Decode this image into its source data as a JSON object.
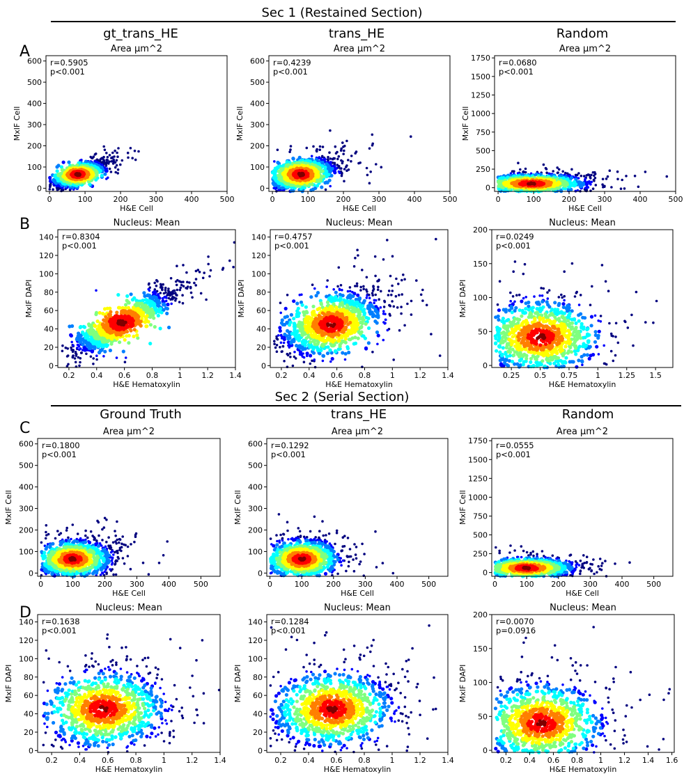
{
  "figure": {
    "section1": {
      "title": "Sec 1 (Restained Section)",
      "columns": [
        "gt_trans_HE",
        "trans_HE",
        "Random"
      ]
    },
    "section2": {
      "title": "Sec 2 (Serial Section)",
      "columns": [
        "Ground Truth",
        "trans_HE",
        "Random"
      ]
    },
    "row_labels": [
      "A",
      "B",
      "C",
      "D"
    ]
  },
  "chart_data": [
    {
      "id": "A1",
      "type": "scatter",
      "title": "Area µm^2",
      "xlabel": "H&E Cell",
      "ylabel": "MxIF Cell",
      "xlim": [
        -10,
        500
      ],
      "ylim": [
        -15,
        625
      ],
      "xticks": [
        0,
        100,
        200,
        300,
        400,
        500
      ],
      "yticks": [
        0,
        100,
        200,
        300,
        400,
        500,
        600
      ],
      "r": "r=0.5905",
      "p": "p<0.001",
      "density_center": [
        80,
        65
      ],
      "density_spread": [
        38,
        30
      ],
      "corr": 0.75
    },
    {
      "id": "A2",
      "type": "scatter",
      "title": "Area µm^2",
      "xlabel": "H&E Cell",
      "ylabel": "MxIF Cell",
      "xlim": [
        -10,
        500
      ],
      "ylim": [
        -15,
        625
      ],
      "xticks": [
        0,
        100,
        200,
        300,
        400,
        500
      ],
      "yticks": [
        0,
        100,
        200,
        300,
        400,
        500,
        600
      ],
      "r": "r=0.4239",
      "p": "p<0.001",
      "density_center": [
        80,
        65
      ],
      "density_spread": [
        45,
        38
      ],
      "corr": 0.5
    },
    {
      "id": "A3",
      "type": "scatter",
      "title": "Area µm^2",
      "xlabel": "H&E Cell",
      "ylabel": "MxIF Cell",
      "xlim": [
        -10,
        500
      ],
      "ylim": [
        -50,
        1780
      ],
      "xticks": [
        0,
        100,
        200,
        300,
        400,
        500
      ],
      "yticks": [
        0,
        250,
        500,
        750,
        1000,
        1250,
        1500,
        1750
      ],
      "r": "r=0.0680",
      "p": "p<0.001",
      "density_center": [
        95,
        55
      ],
      "density_spread": [
        70,
        60
      ],
      "corr": 0.05
    },
    {
      "id": "B1",
      "type": "scatter",
      "title": "Nucleus: Mean",
      "xlabel": "H&E Hematoxylin",
      "ylabel": "MxIF DAPI",
      "xlim": [
        0.12,
        1.4
      ],
      "ylim": [
        -2,
        148
      ],
      "xticks": [
        0.2,
        0.4,
        0.6,
        0.8,
        1.0,
        1.2,
        1.4
      ],
      "yticks": [
        0,
        20,
        40,
        60,
        80,
        100,
        120,
        140
      ],
      "r": "r=0.8304",
      "p": "p<0.001",
      "density_center": [
        0.58,
        47
      ],
      "density_spread": [
        0.18,
        17
      ],
      "corr": 0.9
    },
    {
      "id": "B2",
      "type": "scatter",
      "title": "Nucleus: Mean",
      "xlabel": "H&E Hematoxylin",
      "ylabel": "MxIF DAPI",
      "xlim": [
        0.12,
        1.4
      ],
      "ylim": [
        -2,
        148
      ],
      "xticks": [
        0.2,
        0.4,
        0.6,
        0.8,
        1.0,
        1.2,
        1.4
      ],
      "yticks": [
        0,
        20,
        40,
        60,
        80,
        100,
        120,
        140
      ],
      "r": "r=0.4757",
      "p": "p<0.001",
      "density_center": [
        0.56,
        45
      ],
      "density_spread": [
        0.17,
        17
      ],
      "corr": 0.55
    },
    {
      "id": "B3",
      "type": "scatter",
      "title": "Nucleus: Mean",
      "xlabel": "H&E Hematoxylin",
      "ylabel": "MxIF DAPI",
      "xlim": [
        0.08,
        1.65
      ],
      "ylim": [
        -3,
        200
      ],
      "xticks": [
        0.25,
        0.5,
        0.75,
        1.0,
        1.25,
        1.5
      ],
      "yticks": [
        0,
        50,
        100,
        150,
        200
      ],
      "r": "r=0.0249",
      "p": "p<0.001",
      "density_center": [
        0.5,
        42
      ],
      "density_spread": [
        0.24,
        25
      ],
      "corr": 0.03
    },
    {
      "id": "C1",
      "type": "scatter",
      "title": "Area µm^2",
      "xlabel": "H&E Cell",
      "ylabel": "MxIF Cell",
      "xlim": [
        -10,
        560
      ],
      "ylim": [
        -15,
        625
      ],
      "xticks": [
        0,
        100,
        200,
        300,
        400,
        500
      ],
      "yticks": [
        0,
        100,
        200,
        300,
        400,
        500,
        600
      ],
      "r": "r=0.1800",
      "p": "p<0.001",
      "density_center": [
        100,
        65
      ],
      "density_spread": [
        55,
        40
      ],
      "corr": 0.18
    },
    {
      "id": "C2",
      "type": "scatter",
      "title": "Area µm^2",
      "xlabel": "H&E Cell",
      "ylabel": "MxIF Cell",
      "xlim": [
        -10,
        560
      ],
      "ylim": [
        -15,
        625
      ],
      "xticks": [
        0,
        100,
        200,
        300,
        400,
        500
      ],
      "yticks": [
        0,
        100,
        200,
        300,
        400,
        500,
        600
      ],
      "r": "r=0.1292",
      "p": "p<0.001",
      "density_center": [
        100,
        65
      ],
      "density_spread": [
        55,
        42
      ],
      "corr": 0.13
    },
    {
      "id": "C3",
      "type": "scatter",
      "title": "Area µm^2",
      "xlabel": "H&E Cell",
      "ylabel": "MxIF Cell",
      "xlim": [
        -10,
        560
      ],
      "ylim": [
        -50,
        1780
      ],
      "xticks": [
        0,
        100,
        200,
        300,
        400,
        500
      ],
      "yticks": [
        0,
        250,
        500,
        750,
        1000,
        1250,
        1500,
        1750
      ],
      "r": "r=0.0555",
      "p": "p<0.001",
      "density_center": [
        100,
        60
      ],
      "density_spread": [
        70,
        65
      ],
      "corr": 0.05
    },
    {
      "id": "D1",
      "type": "scatter",
      "title": "Nucleus: Mean",
      "xlabel": "H&E Hematoxylin",
      "ylabel": "MxIF DAPI",
      "xlim": [
        0.1,
        1.4
      ],
      "ylim": [
        -2,
        148
      ],
      "xticks": [
        0.2,
        0.4,
        0.6,
        0.8,
        1.0,
        1.2,
        1.4
      ],
      "yticks": [
        0,
        20,
        40,
        60,
        80,
        100,
        120,
        140
      ],
      "r": "r=0.1638",
      "p": "p<0.001",
      "density_center": [
        0.57,
        45
      ],
      "density_spread": [
        0.2,
        19
      ],
      "corr": 0.16
    },
    {
      "id": "D2",
      "type": "scatter",
      "title": "Nucleus: Mean",
      "xlabel": "H&E Hematoxylin",
      "ylabel": "MxIF DAPI",
      "xlim": [
        0.1,
        1.4
      ],
      "ylim": [
        -2,
        148
      ],
      "xticks": [
        0.2,
        0.4,
        0.6,
        0.8,
        1.0,
        1.2,
        1.4
      ],
      "yticks": [
        0,
        20,
        40,
        60,
        80,
        100,
        120,
        140
      ],
      "r": "r=0.1284",
      "p": "p<0.001",
      "density_center": [
        0.57,
        45
      ],
      "density_spread": [
        0.2,
        19
      ],
      "corr": 0.13
    },
    {
      "id": "D3",
      "type": "scatter",
      "title": "Nucleus: Mean",
      "xlabel": "H&E Hematoxylin",
      "ylabel": "MxIF DAPI",
      "xlim": [
        0.08,
        1.62
      ],
      "ylim": [
        -3,
        200
      ],
      "xticks": [
        0.2,
        0.4,
        0.6,
        0.8,
        1.0,
        1.2,
        1.4,
        1.6
      ],
      "yticks": [
        0,
        50,
        100,
        150,
        200
      ],
      "r": "r=0.0070",
      "p": "p=0.0916",
      "density_center": [
        0.5,
        40
      ],
      "density_spread": [
        0.24,
        27
      ],
      "corr": 0.01
    }
  ],
  "colormap": [
    "#00007f",
    "#0000ff",
    "#007fff",
    "#00ffff",
    "#7fff7f",
    "#ffff00",
    "#ff7f00",
    "#ff0000",
    "#7f0000"
  ]
}
